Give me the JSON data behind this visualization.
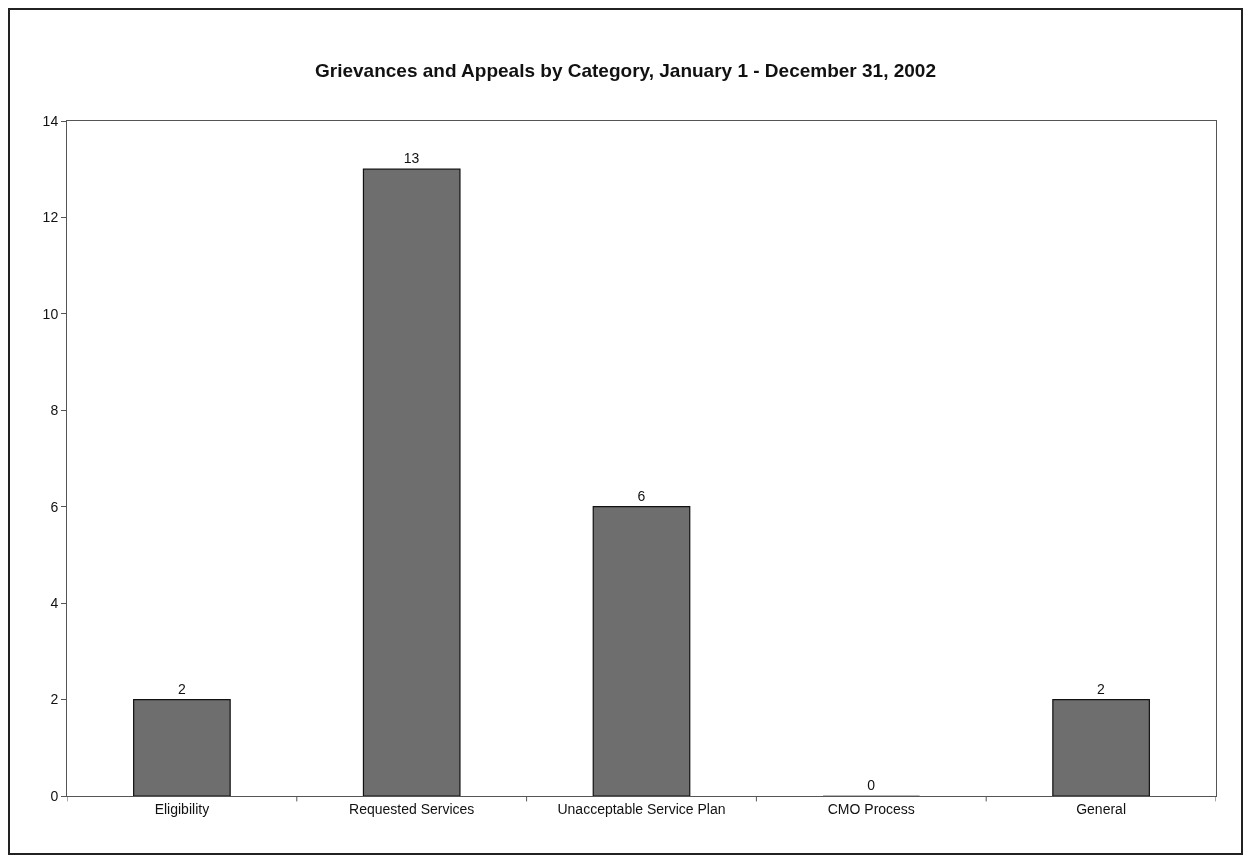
{
  "chart_data": {
    "type": "bar",
    "title": "Grievances and Appeals by Category, January 1 - December 31, 2002",
    "categories": [
      "Eligibility",
      "Requested Services",
      "Unacceptable Service Plan",
      "CMO Process",
      "General"
    ],
    "values": [
      2,
      13,
      6,
      0,
      2
    ],
    "color": "#6e6e6e",
    "ylim": [
      0,
      14
    ],
    "yticks": [
      0,
      2,
      4,
      6,
      8,
      10,
      12,
      14
    ],
    "grid": false,
    "data_labels": true
  }
}
